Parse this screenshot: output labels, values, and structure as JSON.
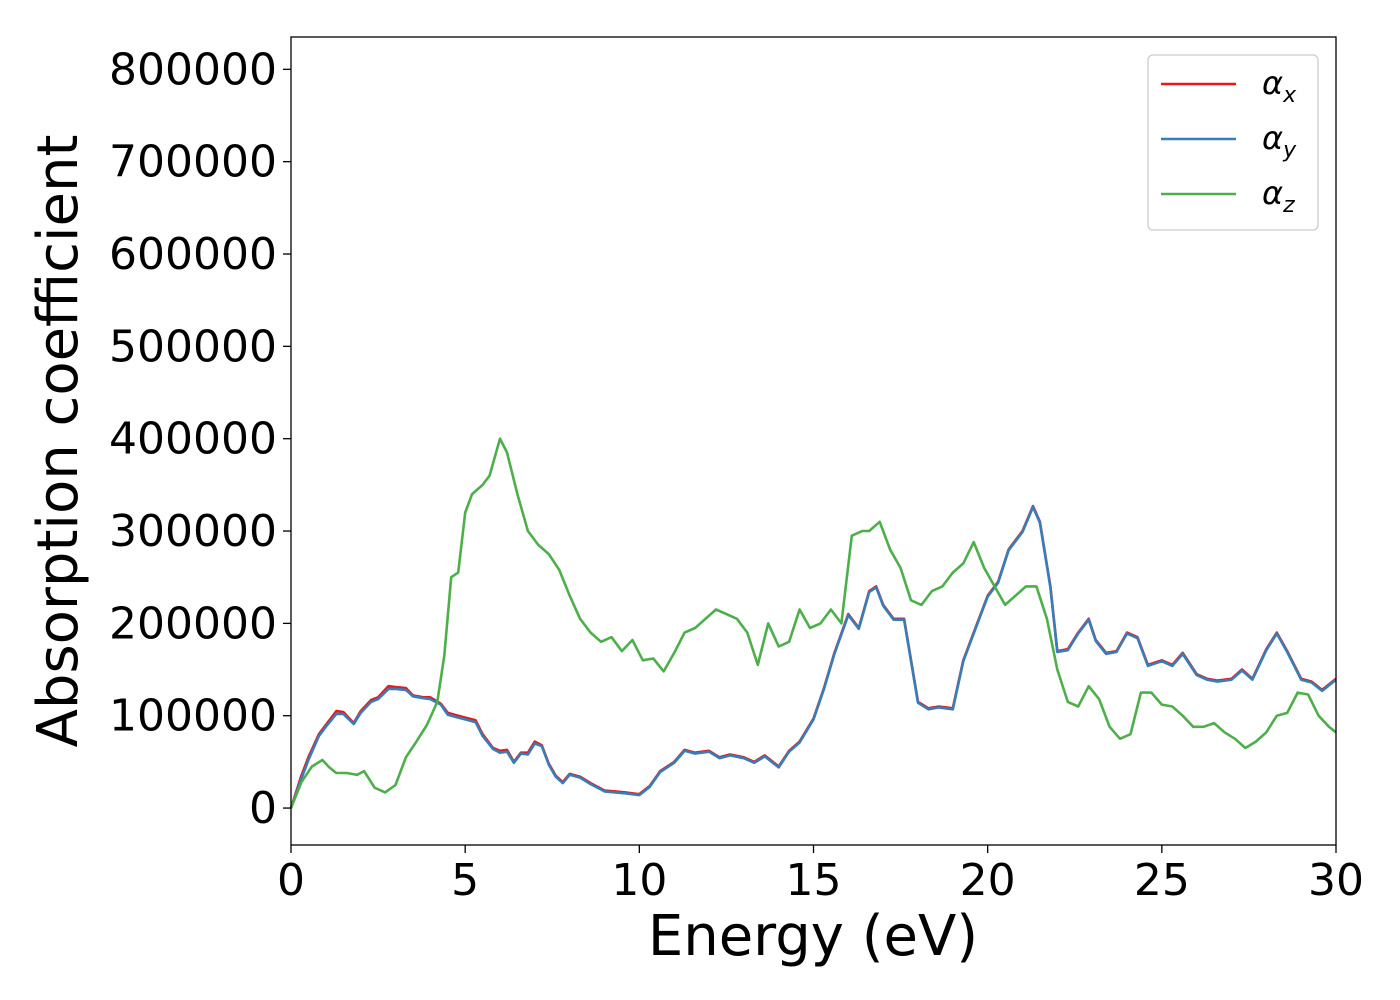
{
  "chart_data": {
    "type": "line",
    "title": "",
    "xlabel": "Energy (eV)",
    "ylabel": "Absorption coefficient",
    "xlim": [
      0,
      30
    ],
    "ylim": [
      -40000,
      835000
    ],
    "xticks": [
      0,
      5,
      10,
      15,
      20,
      25,
      30
    ],
    "yticks": [
      0,
      100000,
      200000,
      300000,
      400000,
      500000,
      600000,
      700000,
      800000
    ],
    "grid": false,
    "legend_position": "top-right",
    "series": [
      {
        "name": "αx",
        "name_base": "α",
        "name_sub": "x",
        "color": "#e41a1c",
        "x": [
          0,
          0.3,
          0.5,
          0.8,
          1.0,
          1.3,
          1.5,
          1.8,
          2.0,
          2.3,
          2.5,
          2.8,
          3.0,
          3.3,
          3.5,
          3.8,
          4.0,
          4.3,
          4.5,
          4.8,
          5.0,
          5.3,
          5.5,
          5.8,
          6.0,
          6.2,
          6.4,
          6.6,
          6.8,
          7.0,
          7.2,
          7.4,
          7.6,
          7.8,
          8.0,
          8.3,
          8.6,
          9.0,
          9.3,
          9.6,
          10.0,
          10.3,
          10.6,
          11.0,
          11.3,
          11.6,
          12.0,
          12.3,
          12.6,
          13.0,
          13.3,
          13.6,
          14.0,
          14.3,
          14.6,
          15.0,
          15.3,
          15.6,
          16.0,
          16.3,
          16.6,
          16.8,
          17.0,
          17.3,
          17.6,
          18.0,
          18.3,
          18.6,
          19.0,
          19.3,
          19.6,
          20.0,
          20.3,
          20.6,
          21.0,
          21.3,
          21.5,
          21.8,
          22.0,
          22.3,
          22.6,
          22.9,
          23.1,
          23.4,
          23.7,
          24.0,
          24.3,
          24.6,
          25.0,
          25.3,
          25.6,
          26.0,
          26.3,
          26.6,
          27.0,
          27.3,
          27.6,
          28.0,
          28.3,
          28.6,
          29.0,
          29.3,
          29.6,
          30.0
        ],
        "y": [
          0,
          35000,
          55000,
          80000,
          90000,
          105000,
          104000,
          92000,
          105000,
          117000,
          120000,
          132000,
          131000,
          130000,
          122000,
          120000,
          120000,
          113000,
          103000,
          100000,
          98000,
          95000,
          80000,
          65000,
          62000,
          63000,
          50000,
          60000,
          60000,
          72000,
          68000,
          48000,
          35000,
          28000,
          37000,
          34000,
          27000,
          19000,
          18000,
          17000,
          15000,
          24000,
          40000,
          50000,
          63000,
          60000,
          62000,
          55000,
          58000,
          55000,
          50000,
          57000,
          45000,
          62000,
          72000,
          97000,
          130000,
          168000,
          210000,
          195000,
          235000,
          240000,
          220000,
          205000,
          205000,
          115000,
          108000,
          110000,
          108000,
          160000,
          190000,
          230000,
          245000,
          280000,
          300000,
          327000,
          310000,
          240000,
          170000,
          172000,
          190000,
          205000,
          182000,
          168000,
          170000,
          190000,
          185000,
          155000,
          160000,
          155000,
          168000,
          145000,
          140000,
          138000,
          140000,
          150000,
          140000,
          172000,
          190000,
          170000,
          140000,
          137000,
          128000,
          140000
        ]
      },
      {
        "name": "αy",
        "name_base": "α",
        "name_sub": "y",
        "color": "#377eb8",
        "x": [
          0,
          0.3,
          0.5,
          0.8,
          1.0,
          1.3,
          1.5,
          1.8,
          2.0,
          2.3,
          2.5,
          2.8,
          3.0,
          3.3,
          3.5,
          3.8,
          4.0,
          4.3,
          4.5,
          4.8,
          5.0,
          5.3,
          5.5,
          5.8,
          6.0,
          6.2,
          6.4,
          6.6,
          6.8,
          7.0,
          7.2,
          7.4,
          7.6,
          7.8,
          8.0,
          8.3,
          8.6,
          9.0,
          9.3,
          9.6,
          10.0,
          10.3,
          10.6,
          11.0,
          11.3,
          11.6,
          12.0,
          12.3,
          12.6,
          13.0,
          13.3,
          13.6,
          14.0,
          14.3,
          14.6,
          15.0,
          15.3,
          15.6,
          16.0,
          16.3,
          16.6,
          16.8,
          17.0,
          17.3,
          17.6,
          18.0,
          18.3,
          18.6,
          19.0,
          19.3,
          19.6,
          20.0,
          20.3,
          20.6,
          21.0,
          21.3,
          21.5,
          21.8,
          22.0,
          22.3,
          22.6,
          22.9,
          23.1,
          23.4,
          23.7,
          24.0,
          24.3,
          24.6,
          25.0,
          25.3,
          25.6,
          26.0,
          26.3,
          26.6,
          27.0,
          27.3,
          27.6,
          28.0,
          28.3,
          28.6,
          29.0,
          29.3,
          29.6,
          30.0
        ],
        "y": [
          0,
          32000,
          52000,
          78000,
          88000,
          102000,
          102000,
          91000,
          103000,
          115000,
          118000,
          129000,
          129000,
          128000,
          121000,
          119000,
          118000,
          112000,
          101000,
          98000,
          96000,
          93000,
          78000,
          64000,
          60000,
          61000,
          49000,
          59000,
          58000,
          70000,
          67000,
          47000,
          34000,
          27000,
          36000,
          33000,
          26000,
          18000,
          17000,
          16000,
          14000,
          23000,
          39000,
          49000,
          62000,
          59000,
          61000,
          54000,
          57000,
          54000,
          49000,
          56000,
          44000,
          61000,
          71000,
          96000,
          129000,
          167000,
          209000,
          194000,
          234000,
          239000,
          219000,
          204000,
          204000,
          114000,
          107000,
          109000,
          107000,
          159000,
          189000,
          229000,
          244000,
          279000,
          299000,
          326000,
          309000,
          239000,
          169000,
          171000,
          189000,
          204000,
          181000,
          167000,
          169000,
          189000,
          184000,
          154000,
          159000,
          154000,
          167000,
          144000,
          139000,
          137000,
          139000,
          149000,
          139000,
          171000,
          189000,
          169000,
          139000,
          136000,
          127000,
          139000
        ]
      },
      {
        "name": "αz",
        "name_base": "α",
        "name_sub": "z",
        "color": "#4daf4a",
        "x": [
          0,
          0.3,
          0.6,
          0.9,
          1.1,
          1.3,
          1.6,
          1.9,
          2.1,
          2.4,
          2.7,
          3.0,
          3.3,
          3.6,
          3.9,
          4.2,
          4.4,
          4.6,
          4.8,
          5.0,
          5.2,
          5.5,
          5.7,
          6.0,
          6.2,
          6.5,
          6.8,
          7.1,
          7.4,
          7.7,
          8.0,
          8.3,
          8.6,
          8.9,
          9.2,
          9.5,
          9.8,
          10.1,
          10.4,
          10.7,
          11.0,
          11.3,
          11.6,
          11.9,
          12.2,
          12.5,
          12.8,
          13.1,
          13.4,
          13.7,
          14.0,
          14.3,
          14.6,
          14.9,
          15.2,
          15.5,
          15.8,
          16.1,
          16.4,
          16.6,
          16.9,
          17.2,
          17.5,
          17.8,
          18.1,
          18.4,
          18.7,
          19.0,
          19.3,
          19.6,
          19.9,
          20.2,
          20.5,
          20.8,
          21.1,
          21.4,
          21.7,
          22.0,
          22.3,
          22.6,
          22.9,
          23.2,
          23.5,
          23.8,
          24.1,
          24.4,
          24.7,
          25.0,
          25.3,
          25.6,
          25.9,
          26.2,
          26.5,
          26.8,
          27.1,
          27.4,
          27.7,
          28.0,
          28.3,
          28.6,
          28.9,
          29.2,
          29.5,
          29.8,
          30.0
        ],
        "y": [
          0,
          28000,
          45000,
          52000,
          44000,
          38000,
          38000,
          36000,
          40000,
          22000,
          17000,
          25000,
          55000,
          72000,
          90000,
          115000,
          165000,
          250000,
          255000,
          320000,
          340000,
          350000,
          360000,
          400000,
          385000,
          340000,
          300000,
          285000,
          275000,
          258000,
          230000,
          205000,
          190000,
          180000,
          185000,
          170000,
          182000,
          160000,
          162000,
          148000,
          168000,
          190000,
          195000,
          205000,
          215000,
          210000,
          205000,
          190000,
          155000,
          200000,
          175000,
          180000,
          215000,
          195000,
          200000,
          215000,
          200000,
          295000,
          300000,
          300000,
          310000,
          280000,
          260000,
          225000,
          220000,
          235000,
          240000,
          255000,
          265000,
          288000,
          260000,
          240000,
          220000,
          230000,
          240000,
          240000,
          205000,
          150000,
          115000,
          110000,
          132000,
          118000,
          88000,
          75000,
          80000,
          125000,
          125000,
          112000,
          110000,
          100000,
          88000,
          88000,
          92000,
          82000,
          75000,
          65000,
          72000,
          82000,
          100000,
          103000,
          125000,
          123000,
          100000,
          88000,
          82000
        ]
      }
    ]
  }
}
